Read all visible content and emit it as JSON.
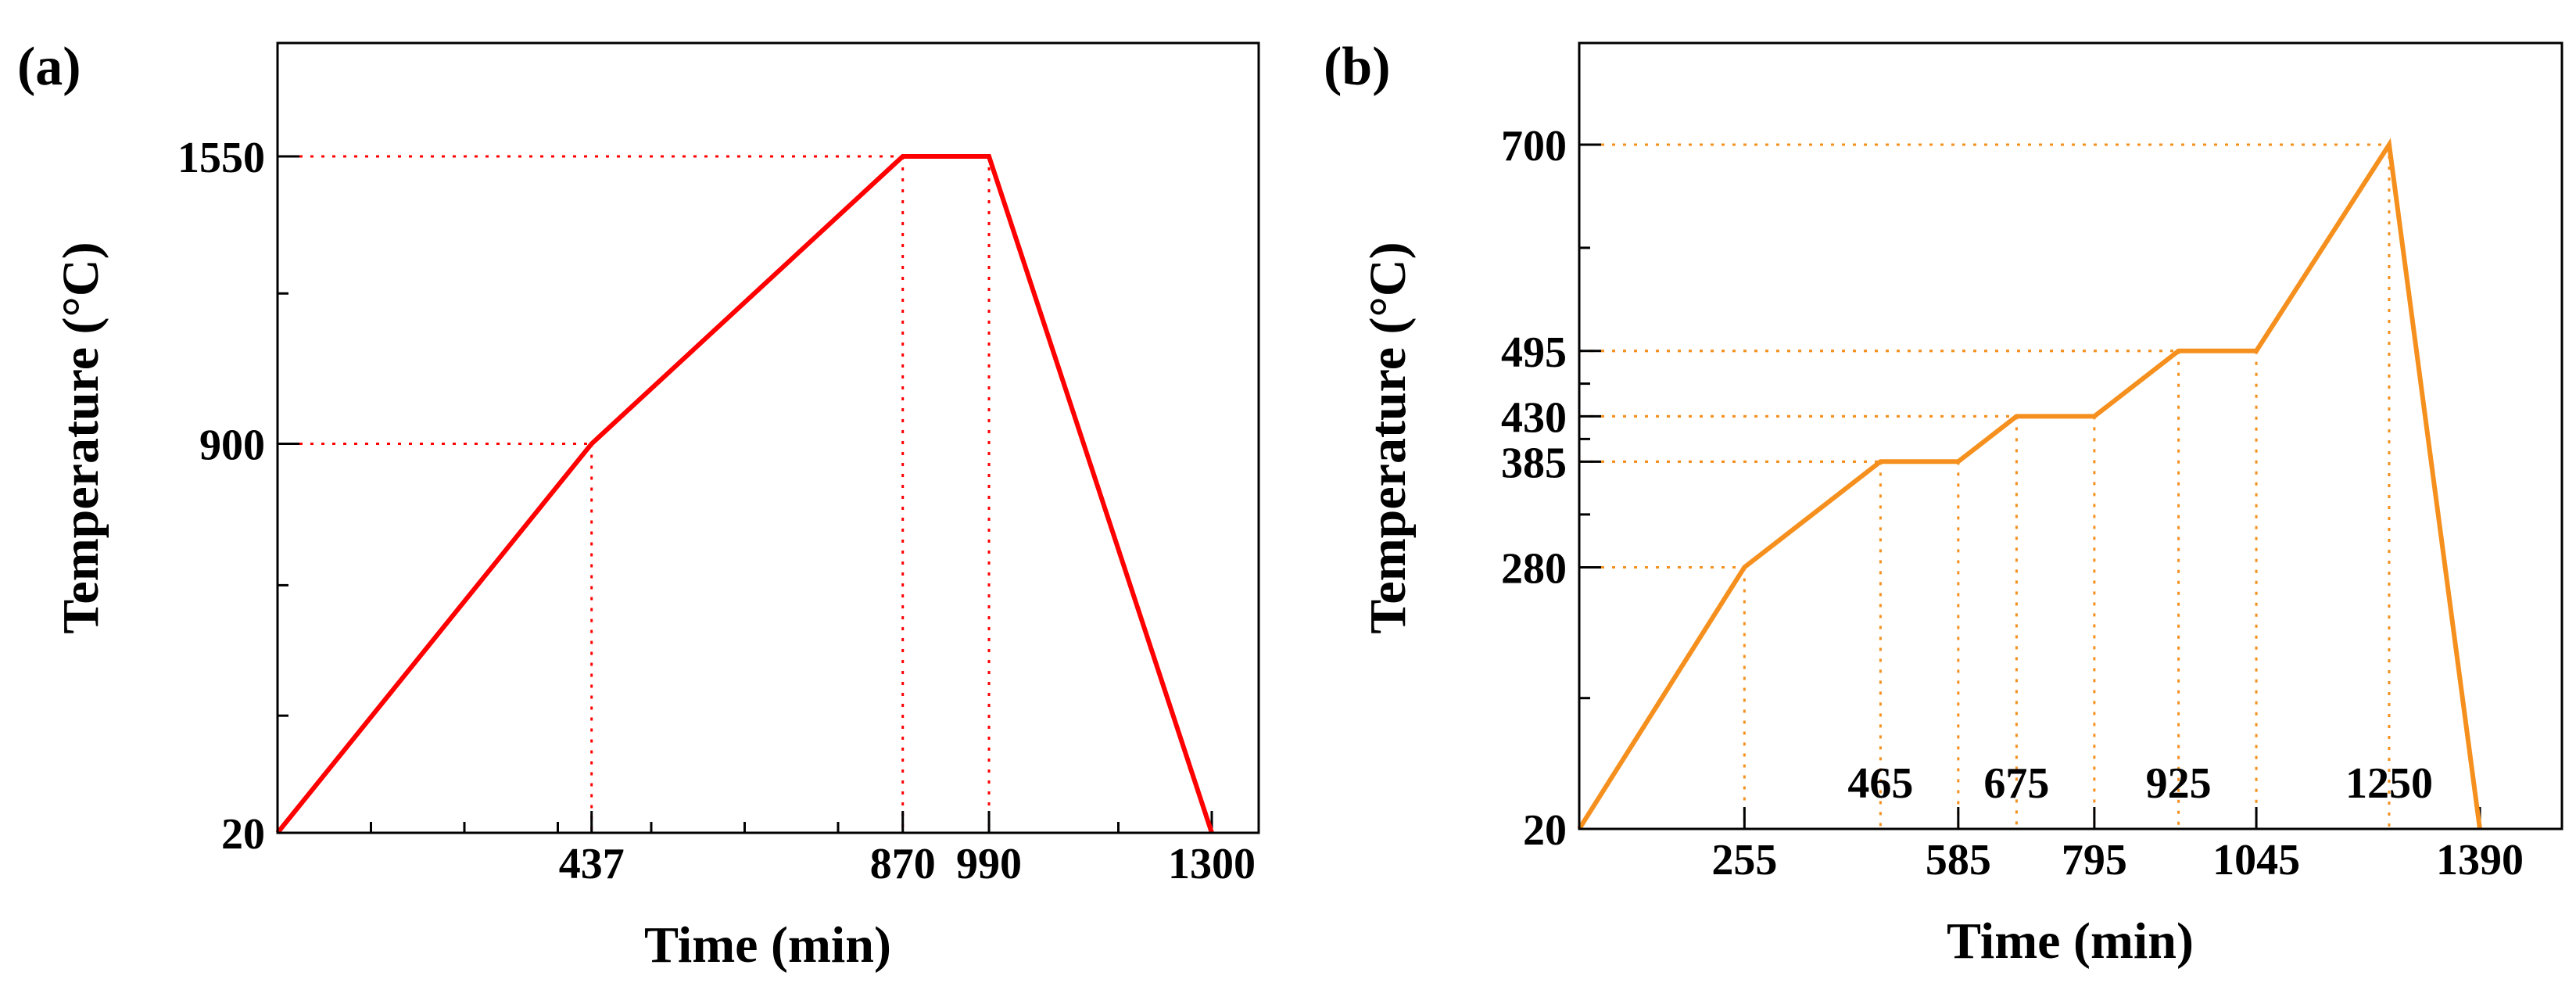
{
  "chart_data": [
    {
      "panel_label": "(a)",
      "type": "line",
      "xlabel": "Time (min)",
      "ylabel": "Temperature (°C)",
      "xlim": [
        0,
        1330
      ],
      "ylim": [
        20,
        1800
      ],
      "x_tick_labels": [
        437,
        870,
        990,
        1300
      ],
      "y_tick_labels": [
        20,
        900,
        1550
      ],
      "y_minor_ticks": [
        285,
        580,
        1240,
        1900
      ],
      "x_minor_ticks": [
        130,
        260,
        390,
        520,
        650,
        780,
        1170
      ],
      "series": [
        {
          "color": "#ff0000",
          "x": [
            0,
            437,
            870,
            990,
            1300
          ],
          "y": [
            20,
            900,
            1550,
            1550,
            20
          ]
        }
      ],
      "reference_lines": [
        {
          "x": 437,
          "y": 900
        },
        {
          "x": 870,
          "y": 1550
        },
        {
          "x": 990,
          "y": 1550
        }
      ],
      "reference_color": "#ff0000",
      "grid": false,
      "legend": "none"
    },
    {
      "panel_label": "(b)",
      "type": "line",
      "xlabel": "Time (min)",
      "ylabel": "Temperature (°C)",
      "xlim": [
        0,
        1450
      ],
      "ylim": [
        20,
        840
      ],
      "x_tick_labels": [
        255,
        585,
        795,
        1045,
        1390
      ],
      "x_inner_labels": [
        465,
        675,
        925,
        1250
      ],
      "y_tick_labels": [
        20,
        280,
        385,
        430,
        495,
        700
      ],
      "series": [
        {
          "color": "#f5901e",
          "x": [
            0,
            255,
            465,
            585,
            675,
            795,
            925,
            1045,
            1250,
            1390
          ],
          "y": [
            20,
            280,
            385,
            385,
            430,
            430,
            495,
            495,
            700,
            20
          ]
        }
      ],
      "reference_lines": [
        {
          "x": 255,
          "y": 280
        },
        {
          "x": 465,
          "y": 385
        },
        {
          "x": 585,
          "y": 385
        },
        {
          "x": 675,
          "y": 430
        },
        {
          "x": 795,
          "y": 430
        },
        {
          "x": 925,
          "y": 495
        },
        {
          "x": 1045,
          "y": 495
        },
        {
          "x": 1250,
          "y": 700
        }
      ],
      "reference_color": "#f5901e",
      "grid": false,
      "legend": "none"
    }
  ]
}
